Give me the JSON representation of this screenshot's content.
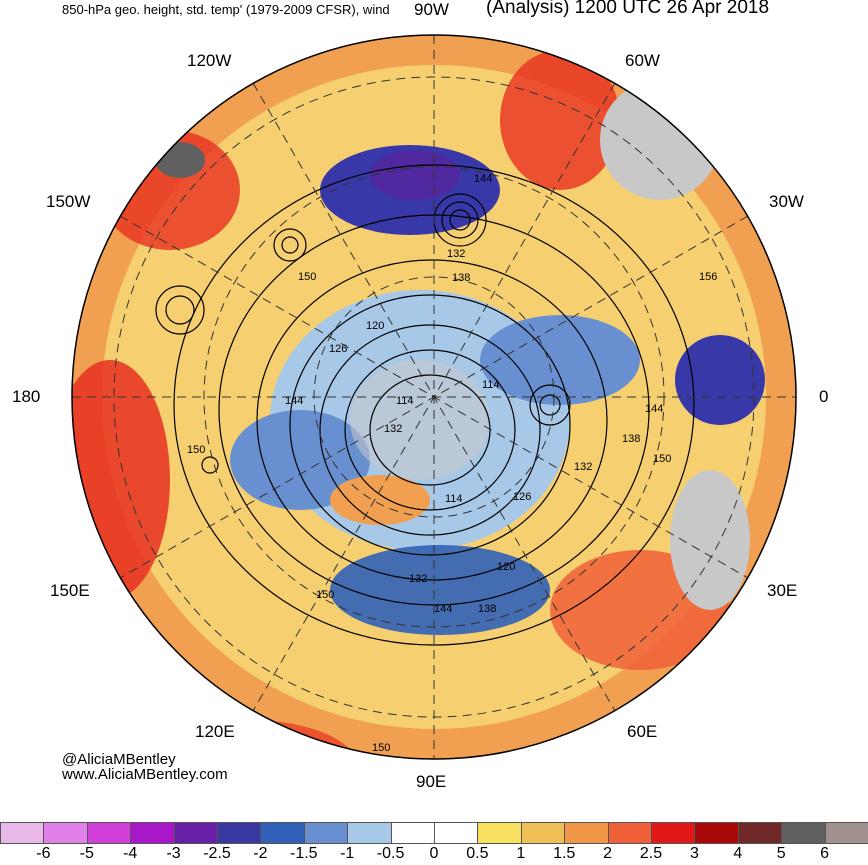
{
  "header": {
    "left_title": "850-hPa geo. height, std. temp' (1979-2009 CFSR), wind",
    "right_title": "(Analysis) 1200 UTC 26 Apr 2018"
  },
  "longitude_labels": {
    "top": "90W",
    "top_left": "120W",
    "top_right": "60W",
    "upper_left": "150W",
    "upper_right": "30W",
    "left": "180",
    "right": "0",
    "lower_left": "150E",
    "lower_right": "30E",
    "bottom_left": "120E",
    "bottom_right": "60E",
    "bottom": "90E"
  },
  "contour_labels": [
    "144",
    "132",
    "150",
    "138",
    "120",
    "126",
    "114",
    "132",
    "114",
    "144",
    "150",
    "132",
    "114",
    "126",
    "120",
    "132",
    "144",
    "138",
    "150",
    "150",
    "156",
    "144",
    "138",
    "150"
  ],
  "credit": {
    "handle": "@AliciaMBentley",
    "url": "www.AliciaMBentley.com"
  },
  "colorbar": {
    "labels": [
      "-6",
      "-5",
      "-4",
      "-3",
      "-2.5",
      "-2",
      "-1.5",
      "-1",
      "-0.5",
      "0",
      "0.5",
      "1",
      "1.5",
      "2",
      "2.5",
      "3",
      "4",
      "5",
      "6"
    ],
    "colors": [
      "#e8b8e8",
      "#e080e8",
      "#d040d8",
      "#a818c8",
      "#6820a8",
      "#3838a0",
      "#3060b8",
      "#6890d0",
      "#a8c8e8",
      "#ffffff",
      "#ffffff",
      "#f8e060",
      "#f0c058",
      "#f09848",
      "#f06038",
      "#e01818",
      "#a80808",
      "#702828",
      "#606060",
      "#a09090"
    ]
  },
  "map_colors": {
    "warm_strong": "#e83020",
    "warm": "#f0a050",
    "warm_light": "#f6d070",
    "cool": "#7098d0",
    "cool_strong": "#3838a8",
    "very_cool": "#5028a0",
    "land_missing": "#c8c8c8"
  }
}
